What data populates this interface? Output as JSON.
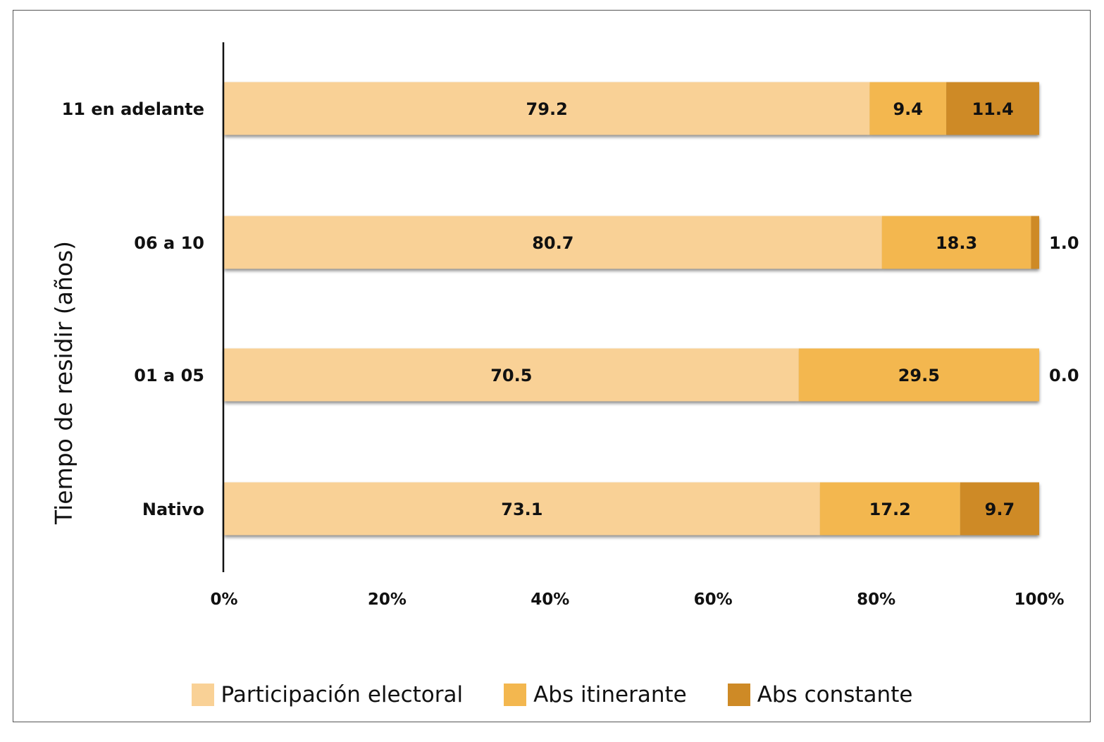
{
  "chart_data": {
    "type": "bar",
    "orientation": "horizontal",
    "stacked": true,
    "categories": [
      "11 en adelante",
      "06 a 10",
      "01 a 05",
      "Nativo"
    ],
    "series": [
      {
        "name": "Participación electoral",
        "color": "#F9D196",
        "values": [
          79.2,
          80.7,
          70.5,
          73.1
        ],
        "labels": [
          "79.2",
          "80.7",
          "70.5",
          "73.1"
        ]
      },
      {
        "name": "Abs itinerante",
        "color": "#F3B74F",
        "values": [
          9.4,
          18.3,
          29.5,
          17.2
        ],
        "labels": [
          "9.4",
          "18.3",
          "29.5",
          "17.2"
        ]
      },
      {
        "name": "Abs constante",
        "color": "#CE8A26",
        "values": [
          11.4,
          1.0,
          0.0,
          9.7
        ],
        "labels": [
          "11.4",
          "1.0",
          "0.0",
          "9.7"
        ]
      }
    ],
    "xlim": [
      0,
      100
    ],
    "xticks": [
      "0%",
      "20%",
      "40%",
      "60%",
      "80%",
      "100%"
    ],
    "xlabel": "",
    "ylabel": "Tiempo de residir  (años)",
    "legend_position": "bottom",
    "grid": false
  }
}
